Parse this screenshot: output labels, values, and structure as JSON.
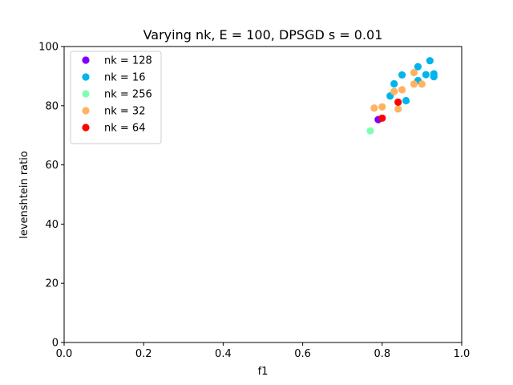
{
  "chart_data": {
    "type": "scatter",
    "title": "Varying nk, E = 100, DPSGD s = 0.01",
    "xlabel": "f1",
    "ylabel": "levenshtein ratio",
    "xlim": [
      0.0,
      1.0
    ],
    "ylim": [
      0,
      100
    ],
    "xticks": [
      "0.0",
      "0.2",
      "0.4",
      "0.6",
      "0.8",
      "1.0"
    ],
    "yticks": [
      "0",
      "20",
      "40",
      "60",
      "80",
      "100"
    ],
    "grid": false,
    "legend_position": "top-left",
    "series": [
      {
        "name": "nk = 128",
        "color": "#8000ff",
        "points": [
          [
            0.79,
            75.3
          ]
        ]
      },
      {
        "name": "nk = 16",
        "color": "#00b5eb",
        "points": [
          [
            0.82,
            83.3
          ],
          [
            0.83,
            87.4
          ],
          [
            0.85,
            90.4
          ],
          [
            0.86,
            81.7
          ],
          [
            0.89,
            93.2
          ],
          [
            0.89,
            88.5
          ],
          [
            0.91,
            90.5
          ],
          [
            0.92,
            95.2
          ],
          [
            0.93,
            90.8
          ],
          [
            0.93,
            89.8
          ]
        ]
      },
      {
        "name": "nk = 256",
        "color": "#80ffb4",
        "points": [
          [
            0.77,
            71.5
          ]
        ]
      },
      {
        "name": "nk = 32",
        "color": "#ffb360",
        "points": [
          [
            0.78,
            79.2
          ],
          [
            0.8,
            79.6
          ],
          [
            0.83,
            84.8
          ],
          [
            0.84,
            78.9
          ],
          [
            0.85,
            85.4
          ],
          [
            0.88,
            91.2
          ],
          [
            0.88,
            87.3
          ],
          [
            0.9,
            87.3
          ]
        ]
      },
      {
        "name": "nk = 64",
        "color": "#ff0000",
        "points": [
          [
            0.8,
            75.8
          ],
          [
            0.84,
            81.2
          ]
        ]
      }
    ]
  }
}
